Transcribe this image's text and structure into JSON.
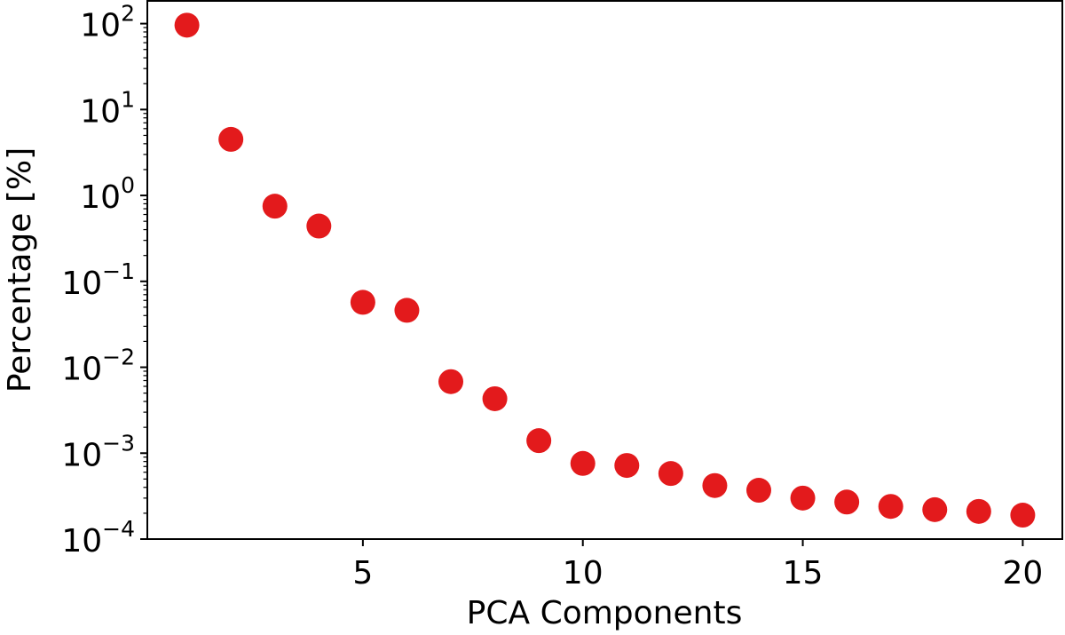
{
  "chart_data": {
    "type": "scatter",
    "title": "",
    "xlabel": "PCA Components",
    "ylabel": "Percentage [%]",
    "yscale": "log",
    "xlim": [
      0.1,
      20.9
    ],
    "ylim": [
      0.0001,
      100
    ],
    "grid": false,
    "marker_color": "#e31a1c",
    "x_ticks": [
      5,
      10,
      15,
      20
    ],
    "x_tick_labels": [
      "5",
      "10",
      "15",
      "20"
    ],
    "y_ticks": [
      100,
      10,
      1,
      0.1,
      0.01,
      0.001,
      0.0001
    ],
    "y_tick_labels": [
      {
        "base": "10",
        "exp": "2"
      },
      {
        "base": "10",
        "exp": "1"
      },
      {
        "base": "10",
        "exp": "0"
      },
      {
        "base": "10",
        "exp": "−1"
      },
      {
        "base": "10",
        "exp": "−2"
      },
      {
        "base": "10",
        "exp": "−3"
      },
      {
        "base": "10",
        "exp": "−4"
      }
    ],
    "x": [
      1,
      2,
      3,
      4,
      5,
      6,
      7,
      8,
      9,
      10,
      11,
      12,
      13,
      14,
      15,
      16,
      17,
      18,
      19,
      20
    ],
    "y": [
      96,
      4.5,
      0.75,
      0.44,
      0.057,
      0.046,
      0.0068,
      0.0043,
      0.0014,
      0.00076,
      0.00072,
      0.00058,
      0.00042,
      0.00037,
      0.0003,
      0.00027,
      0.00024,
      0.00022,
      0.00021,
      0.00019
    ]
  }
}
